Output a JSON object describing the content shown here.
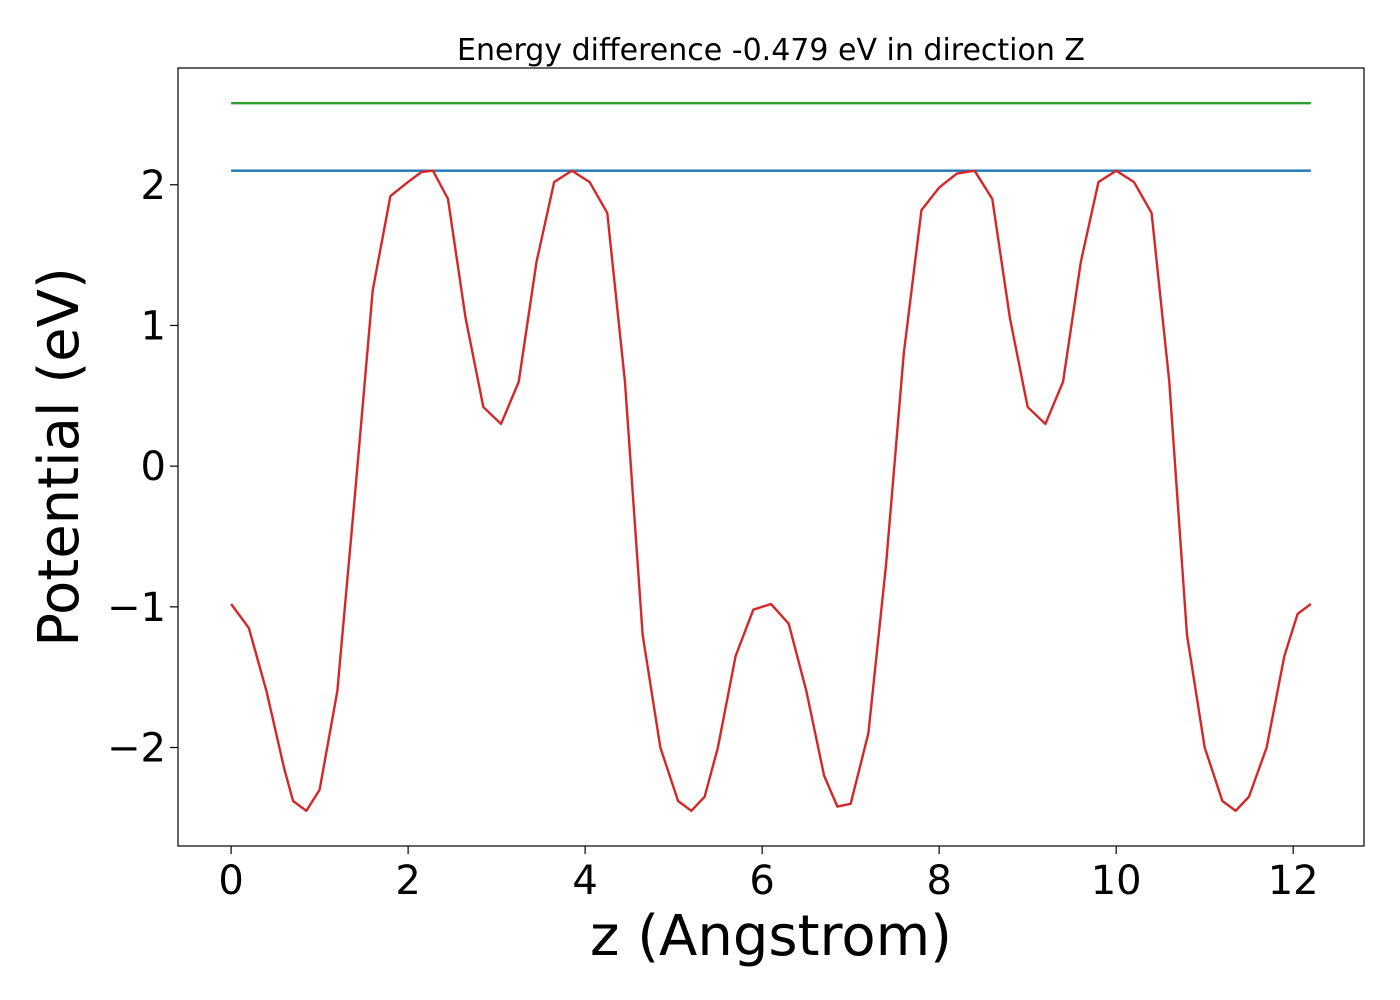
{
  "chart_data": {
    "type": "line",
    "title": "Energy difference -0.479 eV in direction Z",
    "xlabel": "z (Angstrom)",
    "ylabel": "Potential (eV)",
    "xlim": [
      -0.6,
      12.8
    ],
    "ylim": [
      -2.7,
      2.83
    ],
    "xticks": [
      0,
      2,
      4,
      6,
      8,
      10,
      12
    ],
    "xtick_labels": [
      "0",
      "2",
      "4",
      "6",
      "8",
      "10",
      "12"
    ],
    "yticks": [
      -2,
      -1,
      0,
      1,
      2
    ],
    "ytick_labels": [
      "−2",
      "−1",
      "0",
      "1",
      "2"
    ],
    "grid": false,
    "series": [
      {
        "color": "#2ca02c",
        "x": [
          0,
          12.2
        ],
        "y": [
          2.58,
          2.58
        ]
      },
      {
        "color": "#1f77b4",
        "x": [
          0,
          12.2
        ],
        "y": [
          2.1,
          2.1
        ]
      },
      {
        "color": "#d62728",
        "x": [
          0,
          0.2,
          0.4,
          0.6,
          0.7,
          0.85,
          1.0,
          1.2,
          1.4,
          1.6,
          1.8,
          2.0,
          2.15,
          2.28,
          2.45,
          2.65,
          2.85,
          3.05,
          3.25,
          3.45,
          3.65,
          3.85,
          4.05,
          4.25,
          4.45,
          4.65,
          4.85,
          5.05,
          5.2,
          5.35,
          5.5,
          5.7,
          5.9,
          6.1,
          6.3,
          6.5,
          6.7,
          6.85,
          7.0,
          7.2,
          7.4,
          7.6,
          7.8,
          8.0,
          8.2,
          8.4,
          8.6,
          8.8,
          9.0,
          9.2,
          9.4,
          9.6,
          9.8,
          10.0,
          10.2,
          10.4,
          10.6,
          10.8,
          11.0,
          11.2,
          11.35,
          11.5,
          11.7,
          11.9,
          12.05,
          12.2
        ],
        "y": [
          -0.98,
          -1.15,
          -1.6,
          -2.15,
          -2.38,
          -2.45,
          -2.3,
          -1.6,
          -0.2,
          1.25,
          1.92,
          2.02,
          2.09,
          2.1,
          1.9,
          1.05,
          0.42,
          0.3,
          0.6,
          1.45,
          2.02,
          2.1,
          2.02,
          1.8,
          0.6,
          -1.2,
          -2.0,
          -2.38,
          -2.45,
          -2.35,
          -2.0,
          -1.35,
          -1.02,
          -0.98,
          -1.12,
          -1.6,
          -2.2,
          -2.42,
          -2.4,
          -1.9,
          -0.7,
          0.8,
          1.82,
          1.98,
          2.08,
          2.1,
          1.9,
          1.05,
          0.42,
          0.3,
          0.6,
          1.45,
          2.02,
          2.1,
          2.02,
          1.8,
          0.6,
          -1.2,
          -2.0,
          -2.38,
          -2.45,
          -2.35,
          -2.0,
          -1.35,
          -1.05,
          -0.98
        ]
      }
    ]
  }
}
